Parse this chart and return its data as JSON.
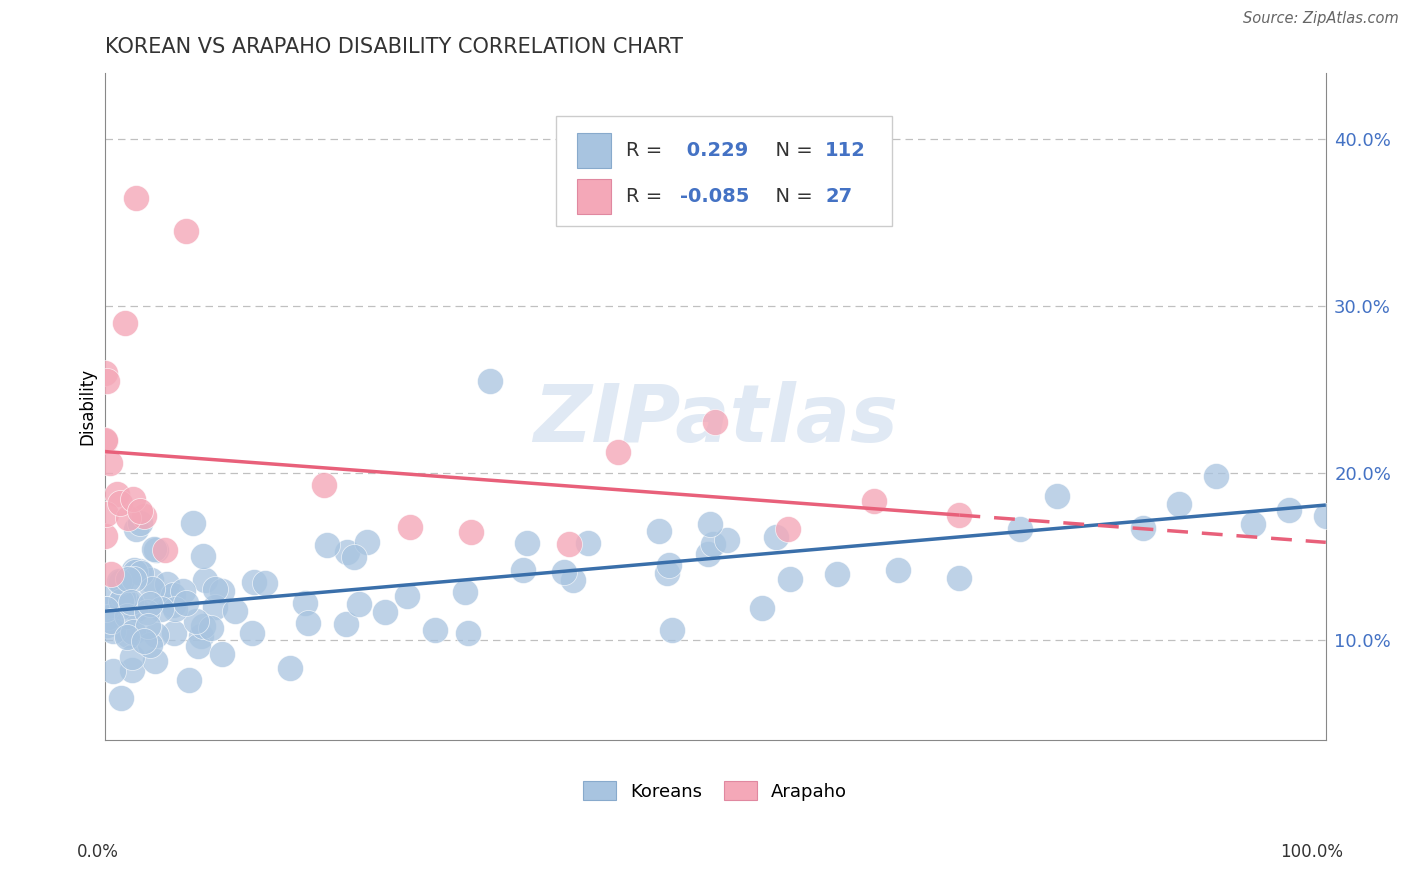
{
  "title": "KOREAN VS ARAPAHO DISABILITY CORRELATION CHART",
  "source": "Source: ZipAtlas.com",
  "ylabel": "Disability",
  "legend_koreans": "Koreans",
  "legend_arapaho": "Arapaho",
  "korean_R": 0.229,
  "korean_N": 112,
  "arapaho_R": -0.085,
  "arapaho_N": 27,
  "korean_color": "#a8c4e0",
  "arapaho_color": "#f4a8b8",
  "korean_line_color": "#3a6faa",
  "arapaho_line_color": "#e8607a",
  "watermark": "ZIPatlas",
  "ytick_labels": [
    "10.0%",
    "20.0%",
    "30.0%",
    "40.0%"
  ],
  "ytick_values": [
    0.1,
    0.2,
    0.3,
    0.4
  ],
  "xmin": 0.0,
  "xmax": 1.0,
  "ymin": 0.04,
  "ymax": 0.44,
  "title_color": "#333333",
  "tick_color": "#4472c4",
  "text_color": "#333333"
}
